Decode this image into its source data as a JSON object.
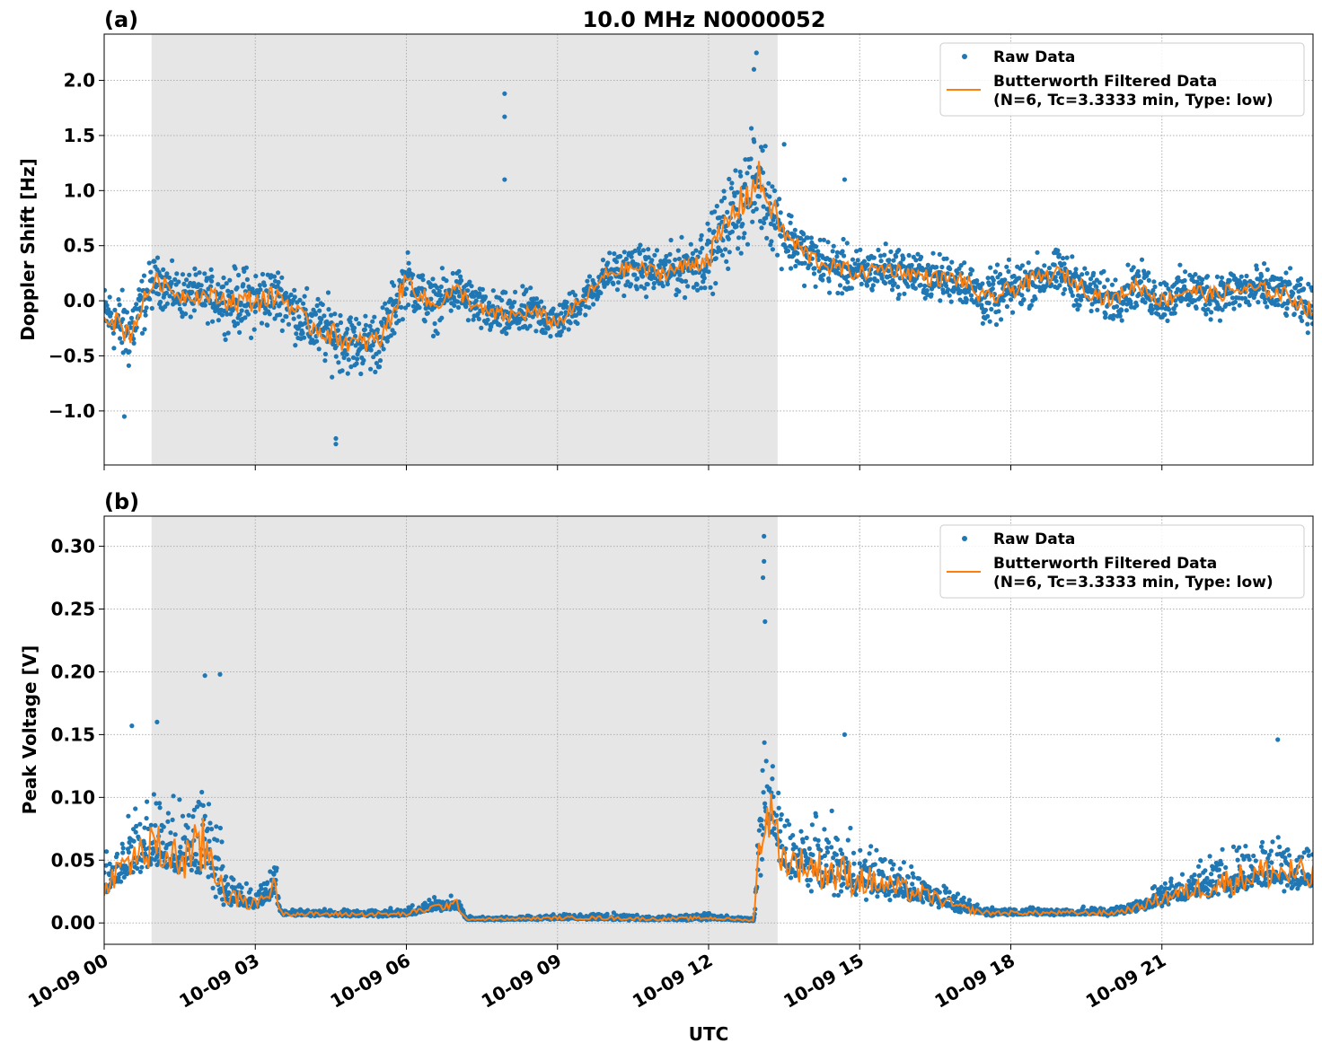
{
  "chart_data": [
    {
      "type": "scatter",
      "panel_label": "(a)",
      "title": "10.0 MHz N0000052",
      "xlabel": "",
      "ylabel": "Doppler Shift [Hz]",
      "xlim_hours": [
        0,
        24
      ],
      "ylim": [
        -1.49,
        2.42
      ],
      "yticks": [
        -1.0,
        -0.5,
        0.0,
        0.5,
        1.0,
        1.5,
        2.0
      ],
      "ytick_labels": [
        "−1.0",
        "−0.5",
        "0.0",
        "0.5",
        "1.0",
        "1.5",
        "2.0"
      ],
      "grid": true,
      "shaded_interval_hours": [
        0.94,
        13.37
      ],
      "legend": {
        "position": "top-right",
        "entries": [
          "Raw Data",
          "Butterworth Filtered Data",
          "(N=6, Tc=3.3333 min, Type: low)"
        ]
      },
      "filtered": {
        "x": [
          0,
          0.5,
          1,
          1.5,
          2,
          2.5,
          3,
          3.5,
          4,
          4.5,
          5,
          5.5,
          6,
          6.5,
          7,
          7.5,
          8,
          8.5,
          9,
          9.5,
          10,
          10.5,
          11,
          11.5,
          12,
          12.5,
          13,
          13.5,
          14,
          14.5,
          15,
          15.5,
          16,
          16.5,
          17,
          17.5,
          18,
          18.5,
          19,
          19.5,
          20,
          20.5,
          21,
          21.5,
          22,
          22.5,
          23,
          23.5,
          24
        ],
        "y": [
          -0.1,
          -0.3,
          0.2,
          0.05,
          0.05,
          0.0,
          0.0,
          0.05,
          -0.2,
          -0.3,
          -0.4,
          -0.35,
          0.2,
          -0.05,
          0.1,
          -0.1,
          -0.15,
          -0.1,
          -0.2,
          0.0,
          0.25,
          0.3,
          0.25,
          0.3,
          0.4,
          0.8,
          1.1,
          0.6,
          0.4,
          0.3,
          0.25,
          0.3,
          0.25,
          0.2,
          0.2,
          0.0,
          0.1,
          0.2,
          0.25,
          0.1,
          0.0,
          0.15,
          0.0,
          0.1,
          0.05,
          0.1,
          0.1,
          0.05,
          -0.1
        ]
      },
      "raw_spread": [
        0.35,
        0.5,
        0.3,
        0.3,
        0.3,
        0.4,
        0.45,
        0.35,
        0.4,
        0.45,
        0.4,
        0.4,
        0.35,
        0.35,
        0.3,
        0.3,
        0.3,
        0.3,
        0.25,
        0.25,
        0.25,
        0.3,
        0.3,
        0.35,
        0.45,
        0.6,
        0.7,
        0.4,
        0.35,
        0.35,
        0.3,
        0.3,
        0.3,
        0.3,
        0.3,
        0.35,
        0.35,
        0.3,
        0.3,
        0.3,
        0.3,
        0.3,
        0.3,
        0.3,
        0.3,
        0.3,
        0.3,
        0.3,
        0.3
      ],
      "raw_outliers": {
        "x": [
          7.95,
          7.95,
          7.95,
          12.95,
          12.9,
          4.6,
          4.6,
          0.4,
          13.5,
          14.7
        ],
        "y": [
          1.88,
          1.67,
          1.1,
          2.25,
          2.1,
          -1.3,
          -1.25,
          -1.05,
          1.42,
          1.1
        ]
      }
    },
    {
      "type": "scatter",
      "panel_label": "(b)",
      "xlabel": "UTC",
      "ylabel": "Peak Voltage [V]",
      "xlim_hours": [
        0,
        24
      ],
      "ylim": [
        -0.017,
        0.324
      ],
      "yticks": [
        0.0,
        0.05,
        0.1,
        0.15,
        0.2,
        0.25,
        0.3
      ],
      "ytick_labels": [
        "0.00",
        "0.05",
        "0.10",
        "0.15",
        "0.20",
        "0.25",
        "0.30"
      ],
      "xticks_hours": [
        0,
        3,
        6,
        9,
        12,
        15,
        18,
        21
      ],
      "xtick_labels": [
        "10-09 00",
        "10-09 03",
        "10-09 06",
        "10-09 09",
        "10-09 12",
        "10-09 15",
        "10-09 18",
        "10-09 21"
      ],
      "grid": true,
      "shaded_interval_hours": [
        0.94,
        13.37
      ],
      "legend": {
        "position": "top-right",
        "entries": [
          "Raw Data",
          "Butterworth Filtered Data",
          "(N=6, Tc=3.3333 min, Type: low)"
        ]
      },
      "filtered": {
        "x": [
          0,
          0.5,
          1,
          1.5,
          2,
          2.5,
          3,
          3.4,
          3.5,
          4,
          5,
          6,
          6.5,
          7,
          7.2,
          8,
          9,
          10,
          11,
          12,
          12.9,
          13.05,
          13.2,
          13.5,
          14,
          14.5,
          15,
          15.5,
          16,
          16.5,
          17,
          17.5,
          18,
          19,
          20,
          20.5,
          21,
          21.5,
          22,
          22.5,
          23,
          23.5,
          24
        ],
        "y": [
          0.03,
          0.05,
          0.06,
          0.05,
          0.06,
          0.02,
          0.015,
          0.03,
          0.008,
          0.007,
          0.007,
          0.007,
          0.012,
          0.015,
          0.003,
          0.003,
          0.004,
          0.004,
          0.003,
          0.004,
          0.002,
          0.08,
          0.09,
          0.05,
          0.045,
          0.04,
          0.035,
          0.03,
          0.025,
          0.02,
          0.012,
          0.008,
          0.008,
          0.008,
          0.008,
          0.012,
          0.02,
          0.025,
          0.03,
          0.035,
          0.04,
          0.04,
          0.035
        ]
      },
      "raw_spread": [
        0.03,
        0.05,
        0.07,
        0.06,
        0.09,
        0.03,
        0.015,
        0.03,
        0.006,
        0.006,
        0.006,
        0.006,
        0.01,
        0.012,
        0.003,
        0.003,
        0.004,
        0.005,
        0.004,
        0.005,
        0.002,
        0.1,
        0.08,
        0.05,
        0.05,
        0.06,
        0.045,
        0.035,
        0.03,
        0.02,
        0.012,
        0.007,
        0.006,
        0.006,
        0.007,
        0.01,
        0.02,
        0.025,
        0.035,
        0.04,
        0.045,
        0.05,
        0.04
      ],
      "raw_outliers": {
        "x": [
          13.1,
          13.1,
          13.08,
          13.12,
          2.3,
          2.0,
          0.55,
          1.05,
          14.7,
          23.3
        ],
        "y": [
          0.308,
          0.288,
          0.275,
          0.24,
          0.198,
          0.197,
          0.157,
          0.16,
          0.15,
          0.146
        ]
      }
    }
  ]
}
